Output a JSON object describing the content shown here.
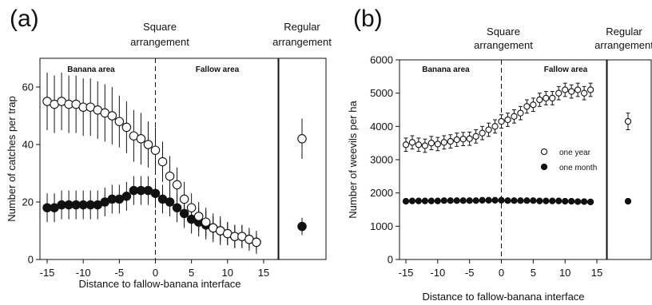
{
  "chart_data": [
    {
      "panel_label": "(a)",
      "type": "scatter",
      "ylabel": "Number of catches per trap",
      "xlabel": "Distance to fallow-banana interface",
      "section_header_left": [
        "Square",
        "arrangement"
      ],
      "section_header_right": [
        "Regular",
        "arrangement"
      ],
      "area_labels": [
        "Banana area",
        "Fallow area"
      ],
      "xlim": [
        -16,
        17
      ],
      "ylim": [
        0,
        70
      ],
      "xticks": [
        -15,
        -10,
        -5,
        0,
        5,
        10,
        15
      ],
      "yticks": [
        0,
        20,
        40,
        60
      ],
      "error_bars": true,
      "grid": false,
      "series": [
        {
          "marker": "open",
          "x": [
            -15,
            -14,
            -13,
            -12,
            -11,
            -10,
            -9,
            -8,
            -7,
            -6,
            -5,
            -4,
            -3,
            -2,
            -1,
            0,
            1,
            2,
            3,
            4,
            5,
            6,
            7,
            8,
            9,
            10,
            11,
            12,
            13,
            14
          ],
          "values": [
            55,
            54,
            55,
            54,
            54,
            53,
            53,
            52,
            51,
            50,
            48,
            46,
            43,
            42,
            40,
            38,
            34,
            29,
            26,
            21,
            18,
            15,
            13,
            11,
            10,
            9,
            8,
            8,
            7,
            6
          ],
          "err": [
            10,
            10,
            10,
            10,
            10,
            10,
            10,
            10,
            10,
            10,
            9,
            9,
            9,
            9,
            8,
            8,
            7,
            7,
            6,
            6,
            5,
            5,
            5,
            4,
            4,
            4,
            4,
            4,
            3,
            3
          ]
        },
        {
          "marker": "filled",
          "x": [
            -15,
            -14,
            -13,
            -12,
            -11,
            -10,
            -9,
            -8,
            -7,
            -6,
            -5,
            -4,
            -3,
            -2,
            -1,
            0,
            1,
            2,
            3,
            4,
            5,
            6,
            7,
            8,
            9,
            10,
            11,
            12,
            13,
            14
          ],
          "values": [
            18,
            18,
            19,
            19,
            19,
            19,
            19,
            19,
            20,
            21,
            21,
            22,
            24,
            24,
            24,
            23,
            21,
            20,
            18,
            16,
            14,
            13,
            12,
            11,
            10,
            9,
            8,
            8,
            7,
            6
          ],
          "err": [
            5,
            5,
            5,
            5,
            5,
            5,
            5,
            5,
            5,
            5,
            5,
            5,
            5,
            5,
            5,
            5,
            5,
            5,
            5,
            5,
            5,
            5,
            5,
            5,
            5,
            4,
            4,
            4,
            4,
            4
          ]
        }
      ],
      "regular_arrangement": [
        {
          "marker": "open",
          "value": 42,
          "err": 7
        },
        {
          "marker": "filled",
          "value": 11.5,
          "err": 3
        }
      ]
    },
    {
      "panel_label": "(b)",
      "type": "scatter",
      "ylabel": "Number of weevils per ha",
      "xlabel": "Distance to fallow-banana interface",
      "section_header_left": [
        "Square",
        "arrangement"
      ],
      "section_header_right": [
        "Regular",
        "arrangement"
      ],
      "area_labels": [
        "Banana area",
        "Fallow area"
      ],
      "xlim": [
        -16,
        16.5
      ],
      "ylim": [
        0,
        6000
      ],
      "xticks": [
        -15,
        -10,
        -5,
        0,
        5,
        10,
        15
      ],
      "yticks": [
        0,
        1000,
        2000,
        3000,
        4000,
        5000,
        6000
      ],
      "error_bars": true,
      "grid": false,
      "legend_position": "right",
      "series": [
        {
          "name": "one year",
          "marker": "open",
          "x": [
            -15,
            -14,
            -13,
            -12,
            -11,
            -10,
            -9,
            -8,
            -7,
            -6,
            -5,
            -4,
            -3,
            -2,
            -1,
            0,
            1,
            2,
            3,
            4,
            5,
            6,
            7,
            8,
            9,
            10,
            11,
            12,
            13,
            14
          ],
          "values": [
            3450,
            3520,
            3450,
            3420,
            3500,
            3470,
            3520,
            3550,
            3600,
            3620,
            3630,
            3700,
            3800,
            3900,
            4000,
            4150,
            4200,
            4300,
            4400,
            4600,
            4650,
            4800,
            4850,
            4850,
            5000,
            5100,
            5050,
            5100,
            5000,
            5100
          ],
          "err": [
            200,
            200,
            200,
            200,
            200,
            200,
            200,
            200,
            200,
            200,
            200,
            200,
            200,
            200,
            200,
            200,
            200,
            200,
            200,
            200,
            200,
            200,
            200,
            200,
            200,
            200,
            200,
            200,
            200,
            200
          ]
        },
        {
          "name": "one month",
          "marker": "filled",
          "x": [
            -15,
            -14,
            -13,
            -12,
            -11,
            -10,
            -9,
            -8,
            -7,
            -6,
            -5,
            -4,
            -3,
            -2,
            -1,
            0,
            1,
            2,
            3,
            4,
            5,
            6,
            7,
            8,
            9,
            10,
            11,
            12,
            13,
            14
          ],
          "values": [
            1750,
            1760,
            1760,
            1760,
            1760,
            1760,
            1770,
            1770,
            1770,
            1770,
            1770,
            1770,
            1780,
            1780,
            1780,
            1780,
            1770,
            1770,
            1770,
            1770,
            1770,
            1760,
            1760,
            1760,
            1760,
            1750,
            1750,
            1740,
            1740,
            1730
          ],
          "err": [
            0,
            0,
            0,
            0,
            0,
            0,
            0,
            0,
            0,
            0,
            0,
            0,
            0,
            0,
            0,
            0,
            0,
            0,
            0,
            0,
            0,
            0,
            0,
            0,
            0,
            0,
            0,
            0,
            0,
            0
          ]
        }
      ],
      "regular_arrangement": [
        {
          "marker": "open",
          "value": 4150,
          "err": 250
        },
        {
          "marker": "filled",
          "value": 1750,
          "err": 0
        }
      ]
    }
  ]
}
